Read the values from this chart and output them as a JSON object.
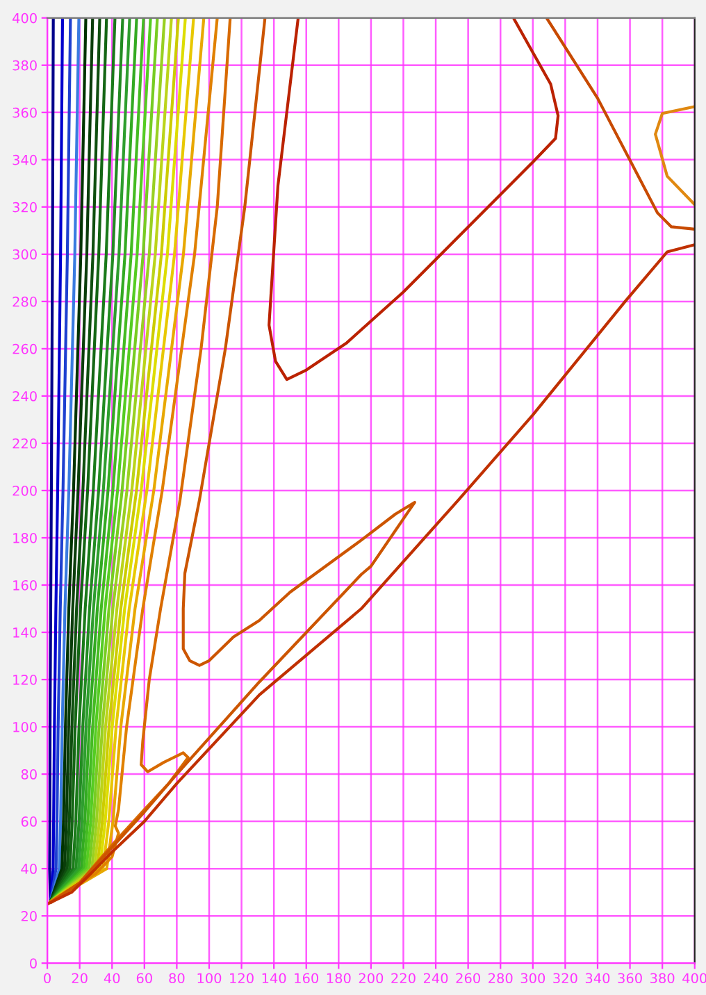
{
  "chart_data": {
    "type": "line",
    "xlim": [
      0,
      400
    ],
    "ylim": [
      0,
      400
    ],
    "xticks": [
      0,
      20,
      40,
      60,
      80,
      100,
      120,
      140,
      160,
      180,
      200,
      220,
      240,
      260,
      280,
      300,
      320,
      340,
      360,
      380,
      400
    ],
    "yticks": [
      0,
      20,
      40,
      60,
      80,
      100,
      120,
      140,
      160,
      180,
      200,
      220,
      240,
      260,
      280,
      300,
      320,
      340,
      360,
      380,
      400
    ],
    "grid": true,
    "marker": "none",
    "line_style": "solid",
    "series": [
      {
        "color": "#00008b",
        "x": [
          2,
          1.4,
          1.6,
          1.7,
          2.1,
          2.5,
          3.2,
          3.7
        ],
        "values": [
          26,
          40,
          60,
          100,
          150,
          200,
          300,
          400
        ]
      },
      {
        "color": "#0000cd",
        "x": [
          2,
          3.6,
          3.9,
          4.4,
          5.3,
          6.4,
          8.2,
          9.4
        ],
        "values": [
          26,
          40,
          60,
          100,
          150,
          200,
          300,
          400
        ]
      },
      {
        "color": "#1e40d0",
        "x": [
          2,
          5.4,
          6,
          6.7,
          8,
          9.7,
          12.4,
          14.3
        ],
        "values": [
          26,
          40,
          60,
          100,
          150,
          200,
          300,
          400
        ]
      },
      {
        "color": "#3a7be0",
        "x": [
          2,
          7.4,
          8.2,
          9.2,
          10.9,
          13.3,
          17,
          19.5
        ],
        "values": [
          26,
          40,
          60,
          100,
          150,
          200,
          300,
          400
        ]
      },
      {
        "color": "#003300",
        "x": [
          2,
          9,
          10,
          11.2,
          13.3,
          16.2,
          20.7,
          23.8
        ],
        "values": [
          26,
          40,
          60,
          100,
          150,
          200,
          300,
          400
        ]
      },
      {
        "color": "#0a3d0a",
        "x": [
          2,
          10.6,
          11.8,
          13.2,
          15.7,
          19,
          24.4,
          28
        ],
        "values": [
          26,
          40,
          60,
          100,
          150,
          200,
          300,
          400
        ]
      },
      {
        "color": "#0f4f0f",
        "x": [
          2,
          12.3,
          13.6,
          15.2,
          18.1,
          22,
          28.2,
          32.4
        ],
        "values": [
          26,
          40,
          60,
          100,
          150,
          200,
          300,
          400
        ]
      },
      {
        "color": "#146614",
        "x": [
          2,
          13.9,
          15.4,
          17.2,
          20.5,
          24.9,
          31.8,
          36.6
        ],
        "values": [
          26,
          40,
          60,
          100,
          150,
          200,
          300,
          400
        ]
      },
      {
        "color": "#1a7a1a",
        "x": [
          2,
          15.9,
          17.6,
          19.6,
          23.4,
          28.4,
          36.4,
          41.8
        ],
        "values": [
          26,
          40,
          60,
          100,
          150,
          200,
          300,
          400
        ]
      },
      {
        "color": "#228b22",
        "x": [
          2,
          17.7,
          19.6,
          21.9,
          26.1,
          31.7,
          40.5,
          46.6
        ],
        "values": [
          26,
          40,
          60,
          100,
          150,
          200,
          300,
          400
        ]
      },
      {
        "color": "#2e9e2e",
        "x": [
          2,
          19.3,
          21.4,
          23.9,
          28.5,
          34.6,
          44.3,
          50.9
        ],
        "values": [
          26,
          40,
          60,
          100,
          150,
          200,
          300,
          400
        ]
      },
      {
        "color": "#33aa22",
        "x": [
          2,
          21,
          23.2,
          25.9,
          30.9,
          37.5,
          48,
          55.2
        ],
        "values": [
          26,
          40,
          60,
          100,
          150,
          200,
          300,
          400
        ]
      },
      {
        "color": "#44bb22",
        "x": [
          2,
          22.6,
          25,
          28,
          33.3,
          40.5,
          51.8,
          59.5
        ],
        "values": [
          26,
          40,
          60,
          100,
          150,
          200,
          300,
          400
        ]
      },
      {
        "color": "#55cc22",
        "x": [
          2,
          24.2,
          26.8,
          30,
          35.7,
          43.4,
          55.5,
          63.8
        ],
        "values": [
          26,
          40,
          60,
          100,
          150,
          200,
          300,
          400
        ]
      },
      {
        "color": "#77cc22",
        "x": [
          2,
          25.8,
          28.6,
          32,
          38.1,
          46.2,
          59.2,
          68
        ],
        "values": [
          26,
          40,
          60,
          100,
          150,
          200,
          300,
          400
        ]
      },
      {
        "color": "#99d022",
        "x": [
          2,
          27.5,
          30.4,
          34,
          40.5,
          49.2,
          63,
          72.4
        ],
        "values": [
          26,
          40,
          60,
          100,
          150,
          200,
          300,
          400
        ]
      },
      {
        "color": "#bbd41a",
        "x": [
          2,
          29.1,
          32.2,
          36,
          43,
          52.2,
          66.7,
          76.7
        ],
        "values": [
          26,
          40,
          60,
          100,
          150,
          200,
          300,
          400
        ]
      },
      {
        "color": "#cccc00",
        "x": [
          2,
          30.8,
          34,
          38.1,
          45.4,
          55.1,
          70.5,
          81
        ],
        "values": [
          26,
          40,
          60,
          100,
          150,
          200,
          300,
          400
        ]
      },
      {
        "color": "#dddd00",
        "x": [
          2,
          32.4,
          35.8,
          40.1,
          47.8,
          58,
          74.2,
          85.3
        ],
        "values": [
          26,
          40,
          60,
          100,
          150,
          200,
          300,
          400
        ]
      },
      {
        "color": "#e8c800",
        "x": [
          2,
          34.4,
          38,
          42.5,
          50.6,
          61.5,
          78.6,
          90.4
        ],
        "values": [
          26,
          40,
          60,
          100,
          150,
          200,
          300,
          400
        ]
      },
      {
        "color": "#e8a800",
        "x": [
          2,
          36.7,
          40.6,
          45.4,
          54.2,
          65.8,
          84.1,
          96.7
        ],
        "values": [
          26,
          40,
          60,
          100,
          150,
          200,
          300,
          400
        ]
      },
      {
        "color": "#e08000",
        "x": [
          2,
          30,
          40,
          44,
          42,
          44,
          49,
          59,
          71,
          91,
          105
        ],
        "values": [
          26,
          38,
          45,
          55,
          58,
          65,
          100,
          150,
          200,
          300,
          400
        ]
      },
      {
        "color": "#d86a00",
        "x": [
          2,
          20,
          40,
          60,
          75,
          87,
          84,
          72,
          62,
          58,
          59,
          63,
          70,
          82,
          95,
          105,
          113
        ],
        "values": [
          26,
          34,
          50,
          65,
          76,
          87,
          89,
          85,
          81,
          84,
          94,
          120,
          150,
          196,
          260,
          320,
          400
        ]
      },
      {
        "color": "#cc5500",
        "x": [
          134.5,
          122,
          110,
          94,
          85,
          84,
          84,
          88,
          94,
          100,
          115,
          131,
          150,
          194,
          215,
          227,
          224,
          200,
          194,
          131,
          80,
          60,
          40,
          20,
          3
        ],
        "values": [
          400,
          320,
          260,
          196,
          165,
          150,
          133,
          128,
          126,
          128,
          138,
          145,
          157,
          179,
          190,
          195,
          192,
          168,
          164.5,
          119,
          80,
          64,
          49,
          34,
          26
        ]
      },
      {
        "color": "#c03000",
        "x": [
          0,
          15,
          30,
          40,
          60,
          80,
          131,
          194,
          254,
          300,
          357,
          383,
          400
        ],
        "values": [
          25,
          30,
          40,
          47,
          60,
          76,
          113.5,
          150,
          196,
          232,
          280,
          301,
          304
        ]
      },
      {
        "color": "#bb2200",
        "x": [
          288,
          311,
          315.6,
          314,
          300,
          220,
          185,
          160,
          148,
          141,
          137,
          142.5,
          155
        ],
        "values": [
          400,
          372,
          358.6,
          349,
          339,
          284,
          262.5,
          251,
          247,
          254.7,
          270,
          329,
          400
        ]
      },
      {
        "color": "#c84a00",
        "x": [
          308.5,
          340,
          377,
          385.6,
          400
        ],
        "values": [
          400,
          366,
          317.5,
          311.6,
          310.6
        ]
      },
      {
        "color": "#e08810",
        "x": [
          400,
          380,
          375.7,
          383,
          400
        ],
        "values": [
          362.5,
          359.6,
          350.8,
          333,
          321
        ]
      }
    ]
  }
}
